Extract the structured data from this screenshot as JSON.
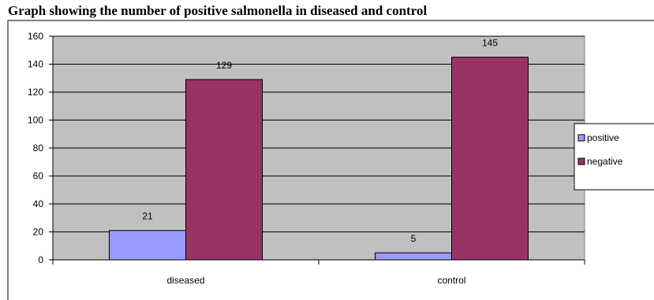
{
  "chart_data": {
    "type": "bar",
    "title": "Graph showing the number of positive salmonella in diseased and control",
    "categories": [
      "diseased",
      "control"
    ],
    "series": [
      {
        "name": "positive",
        "values": [
          21,
          5
        ],
        "color": "#9999FF"
      },
      {
        "name": "negative",
        "values": [
          129,
          145
        ],
        "color": "#993366"
      }
    ],
    "ylim": [
      0,
      160
    ],
    "yticks": [
      0,
      20,
      40,
      60,
      80,
      100,
      120,
      140,
      160
    ],
    "grid": true,
    "plot_background": "#C0C0C0",
    "legend_position": "right",
    "data_labels": true
  }
}
